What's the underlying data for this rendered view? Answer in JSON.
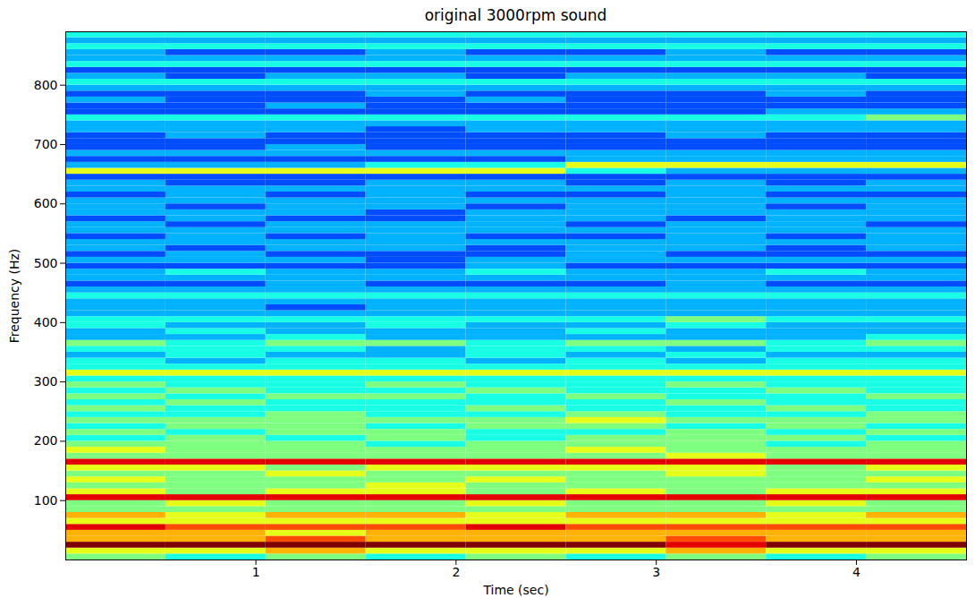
{
  "chart_data": {
    "type": "heatmap",
    "title": "original 3000rpm sound",
    "x_label": "Time (sec)",
    "y_label": "Frequency (Hz)",
    "xlim": [
      0.05,
      4.55
    ],
    "ylim": [
      0,
      890
    ],
    "xticks": [
      1,
      2,
      3,
      4
    ],
    "yticks": [
      100,
      200,
      300,
      400,
      500,
      600,
      700,
      800
    ],
    "zlim": [
      0,
      10
    ],
    "x_bins": [
      0.05,
      0.55,
      1.05,
      1.55,
      2.05,
      2.55,
      3.05,
      3.55,
      4.05,
      4.55
    ],
    "y_bins": [
      0,
      10,
      20,
      30,
      40,
      50,
      60,
      70,
      80,
      90,
      100,
      110,
      120,
      130,
      140,
      150,
      160,
      170,
      180,
      190,
      200,
      210,
      220,
      230,
      240,
      250,
      260,
      270,
      280,
      290,
      300,
      310,
      320,
      330,
      340,
      350,
      360,
      370,
      380,
      390,
      400,
      410,
      420,
      430,
      440,
      450,
      460,
      470,
      480,
      490,
      500,
      510,
      520,
      530,
      540,
      550,
      560,
      570,
      580,
      590,
      600,
      610,
      620,
      630,
      640,
      650,
      660,
      670,
      680,
      690,
      700,
      710,
      720,
      730,
      740,
      750,
      760,
      770,
      780,
      790,
      800,
      810,
      820,
      830,
      840,
      850,
      860,
      870,
      880,
      890
    ],
    "values": [
      [
        5,
        4,
        5,
        4,
        5,
        4,
        5,
        4,
        5
      ],
      [
        6,
        6,
        7,
        6,
        6,
        6,
        7,
        6,
        6
      ],
      [
        10,
        10,
        10,
        10,
        10,
        10,
        9,
        10,
        10
      ],
      [
        7,
        7,
        8,
        7,
        7,
        7,
        8,
        7,
        7
      ],
      [
        7,
        7,
        6,
        7,
        7,
        7,
        7,
        7,
        7
      ],
      [
        9,
        8,
        8,
        8,
        9,
        8,
        8,
        8,
        8
      ],
      [
        6,
        6,
        6,
        6,
        6,
        6,
        6,
        6,
        6
      ],
      [
        7,
        6,
        7,
        7,
        6,
        7,
        7,
        6,
        7
      ],
      [
        5,
        5,
        5,
        5,
        5,
        5,
        5,
        5,
        5
      ],
      [
        5,
        6,
        5,
        5,
        6,
        5,
        5,
        6,
        5
      ],
      [
        9,
        9,
        9,
        9,
        9,
        9,
        9,
        9,
        9
      ],
      [
        6,
        5,
        6,
        6,
        5,
        6,
        5,
        6,
        6
      ],
      [
        5,
        5,
        5,
        6,
        5,
        5,
        5,
        5,
        5
      ],
      [
        6,
        5,
        5,
        5,
        6,
        5,
        5,
        5,
        6
      ],
      [
        5,
        5,
        6,
        5,
        5,
        5,
        6,
        5,
        5
      ],
      [
        6,
        6,
        5,
        6,
        6,
        6,
        6,
        5,
        6
      ],
      [
        9,
        9,
        9,
        9,
        9,
        9,
        9,
        9,
        9
      ],
      [
        5,
        5,
        5,
        5,
        5,
        5,
        6,
        5,
        5
      ],
      [
        6,
        5,
        5,
        5,
        5,
        6,
        5,
        5,
        5
      ],
      [
        5,
        5,
        5,
        4,
        5,
        5,
        5,
        4,
        5
      ],
      [
        4,
        5,
        4,
        5,
        4,
        5,
        5,
        5,
        4
      ],
      [
        5,
        4,
        5,
        5,
        4,
        4,
        5,
        4,
        5
      ],
      [
        4,
        5,
        5,
        4,
        5,
        5,
        4,
        5,
        4
      ],
      [
        5,
        5,
        5,
        5,
        5,
        6,
        5,
        5,
        5
      ],
      [
        4,
        4,
        5,
        4,
        4,
        5,
        4,
        4,
        5
      ],
      [
        5,
        4,
        4,
        4,
        5,
        4,
        4,
        5,
        4
      ],
      [
        4,
        5,
        4,
        4,
        4,
        4,
        5,
        4,
        4
      ],
      [
        5,
        4,
        5,
        5,
        4,
        5,
        4,
        4,
        5
      ],
      [
        4,
        5,
        4,
        4,
        5,
        4,
        4,
        5,
        4
      ],
      [
        5,
        4,
        4,
        5,
        4,
        4,
        5,
        4,
        4
      ],
      [
        4,
        4,
        4,
        4,
        4,
        4,
        4,
        4,
        4
      ],
      [
        6,
        6,
        6,
        6,
        6,
        6,
        6,
        6,
        6
      ],
      [
        4,
        4,
        4,
        4,
        4,
        4,
        4,
        4,
        4
      ],
      [
        4,
        3,
        4,
        4,
        3,
        4,
        3,
        4,
        4
      ],
      [
        3,
        4,
        3,
        3,
        4,
        3,
        4,
        3,
        3
      ],
      [
        4,
        4,
        4,
        3,
        4,
        4,
        3,
        4,
        4
      ],
      [
        5,
        4,
        5,
        5,
        4,
        5,
        5,
        4,
        5
      ],
      [
        3,
        3,
        4,
        3,
        3,
        3,
        3,
        3,
        4
      ],
      [
        3,
        4,
        3,
        3,
        3,
        4,
        3,
        3,
        3
      ],
      [
        4,
        3,
        3,
        4,
        3,
        3,
        4,
        3,
        3
      ],
      [
        4,
        4,
        4,
        4,
        4,
        4,
        5,
        4,
        4
      ],
      [
        3,
        3,
        3,
        3,
        3,
        3,
        3,
        3,
        3
      ],
      [
        3,
        3,
        2,
        3,
        3,
        3,
        3,
        3,
        3
      ],
      [
        3,
        3,
        3,
        3,
        3,
        3,
        3,
        3,
        3
      ],
      [
        4,
        4,
        4,
        4,
        4,
        4,
        4,
        4,
        4
      ],
      [
        3,
        3,
        3,
        3,
        3,
        3,
        3,
        3,
        3
      ],
      [
        2,
        2,
        3,
        2,
        2,
        2,
        3,
        2,
        2
      ],
      [
        3,
        3,
        3,
        3,
        3,
        3,
        3,
        3,
        3
      ],
      [
        3,
        4,
        3,
        3,
        4,
        3,
        3,
        4,
        3
      ],
      [
        2,
        2,
        2,
        2,
        3,
        2,
        2,
        2,
        2
      ],
      [
        3,
        3,
        3,
        2,
        3,
        3,
        3,
        3,
        3
      ],
      [
        2,
        3,
        2,
        2,
        2,
        3,
        2,
        2,
        2
      ],
      [
        3,
        2,
        3,
        3,
        2,
        3,
        3,
        2,
        3
      ],
      [
        3,
        3,
        3,
        3,
        3,
        3,
        3,
        3,
        3
      ],
      [
        2,
        3,
        2,
        3,
        2,
        2,
        3,
        2,
        3
      ],
      [
        3,
        3,
        3,
        3,
        3,
        3,
        3,
        3,
        3
      ],
      [
        3,
        2,
        3,
        3,
        3,
        2,
        3,
        3,
        2
      ],
      [
        2,
        3,
        2,
        2,
        3,
        3,
        2,
        3,
        3
      ],
      [
        3,
        3,
        3,
        2,
        3,
        3,
        3,
        3,
        3
      ],
      [
        3,
        2,
        3,
        3,
        2,
        3,
        3,
        2,
        3
      ],
      [
        3,
        3,
        3,
        3,
        3,
        3,
        3,
        3,
        3
      ],
      [
        2,
        3,
        2,
        3,
        2,
        2,
        3,
        2,
        2
      ],
      [
        3,
        3,
        3,
        3,
        3,
        3,
        3,
        3,
        3
      ],
      [
        3,
        2,
        2,
        3,
        3,
        2,
        3,
        2,
        3
      ],
      [
        2,
        2,
        2,
        2,
        2,
        2,
        2,
        2,
        2
      ],
      [
        6,
        6,
        6,
        6,
        6,
        4,
        3,
        3,
        3
      ],
      [
        3,
        3,
        3,
        4,
        4,
        6,
        6,
        6,
        6
      ],
      [
        2,
        2,
        2,
        2,
        2,
        3,
        3,
        3,
        3
      ],
      [
        3,
        3,
        3,
        3,
        3,
        3,
        3,
        3,
        3
      ],
      [
        2,
        2,
        3,
        2,
        2,
        2,
        2,
        2,
        2
      ],
      [
        2,
        2,
        2,
        2,
        2,
        2,
        2,
        2,
        2
      ],
      [
        2,
        3,
        2,
        2,
        2,
        2,
        3,
        2,
        2
      ],
      [
        3,
        3,
        3,
        2,
        3,
        3,
        3,
        3,
        3
      ],
      [
        3,
        3,
        3,
        3,
        3,
        3,
        3,
        3,
        3
      ],
      [
        4,
        4,
        4,
        4,
        4,
        4,
        4,
        4,
        5
      ],
      [
        2,
        2,
        2,
        2,
        2,
        2,
        2,
        3,
        3
      ],
      [
        2,
        2,
        3,
        2,
        2,
        2,
        2,
        2,
        2
      ],
      [
        3,
        2,
        2,
        2,
        3,
        2,
        2,
        2,
        2
      ],
      [
        2,
        2,
        2,
        3,
        2,
        2,
        2,
        3,
        2
      ],
      [
        3,
        3,
        3,
        3,
        3,
        3,
        3,
        3,
        3
      ],
      [
        4,
        4,
        4,
        4,
        4,
        4,
        4,
        4,
        4
      ],
      [
        3,
        2,
        3,
        3,
        2,
        3,
        3,
        3,
        2
      ],
      [
        2,
        2,
        2,
        2,
        2,
        2,
        2,
        2,
        2
      ],
      [
        4,
        4,
        4,
        4,
        4,
        4,
        4,
        4,
        4
      ],
      [
        3,
        3,
        3,
        3,
        3,
        3,
        3,
        3,
        3
      ],
      [
        3,
        2,
        2,
        3,
        2,
        2,
        3,
        2,
        2
      ],
      [
        4,
        4,
        4,
        4,
        4,
        4,
        4,
        4,
        4
      ],
      [
        3,
        3,
        3,
        3,
        3,
        3,
        3,
        3,
        3
      ],
      [
        4,
        4,
        4,
        4,
        4,
        4,
        4,
        4,
        4
      ]
    ]
  }
}
